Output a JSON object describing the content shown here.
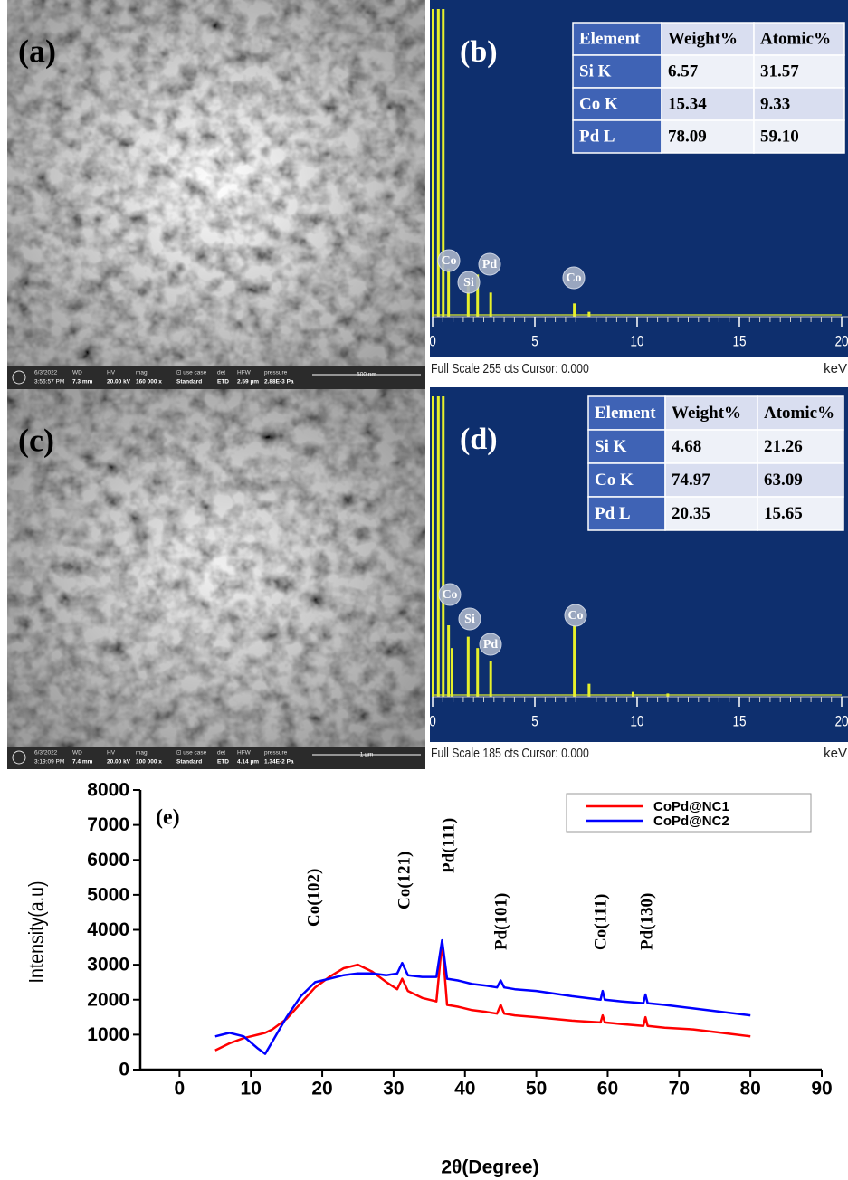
{
  "panels": [
    {
      "label": "(a)",
      "info_labels": [
        "6/3/2022",
        "WD",
        "HV",
        "mag",
        "⊡ use case",
        "det",
        "HFW",
        "pressure"
      ],
      "info_values": [
        "3:56:57 PM",
        "7.3 mm",
        "20.00 kV",
        "160 000 x",
        "Standard",
        "ETD",
        "2.59 µm",
        "2.88E-3 Pa"
      ],
      "scale_bar": "500 nm"
    },
    {
      "label": "(c)",
      "info_labels": [
        "6/3/2022",
        "WD",
        "HV",
        "mag",
        "⊡ use case",
        "det",
        "HFW",
        "pressure"
      ],
      "info_values": [
        "3:19:09 PM",
        "7.4 mm",
        "20.00 kV",
        "100 000 x",
        "Standard",
        "ETD",
        "4.14 µm",
        "1.34E-2 Pa"
      ],
      "scale_bar": "1 µm"
    }
  ],
  "chart_data": [
    {
      "type": "spectrum",
      "title": "(b)",
      "color": "#e6f02a",
      "x": [
        0.28,
        0.52,
        0.78,
        1.74,
        2.2,
        2.84,
        6.93,
        7.65
      ],
      "values": [
        255,
        255,
        40,
        30,
        35,
        20,
        11,
        4
      ],
      "xlim": [
        0,
        20
      ],
      "ylim": [
        0,
        255
      ],
      "xticks": [
        0,
        5,
        10,
        15,
        20
      ],
      "x_unit": "keV",
      "footer": "Full Scale 255 cts Cursor: 0.000",
      "peak_labels": [
        "Co",
        "Si",
        "Pd",
        "Co"
      ],
      "table": {
        "columns": [
          "Element",
          "Weight%",
          "Atomic%"
        ],
        "rows": [
          [
            "Si K",
            "6.57",
            "31.57"
          ],
          [
            "Co K",
            "15.34",
            "9.33"
          ],
          [
            "Pd L",
            "78.09",
            "59.10"
          ]
        ]
      }
    },
    {
      "type": "spectrum",
      "title": "(d)",
      "color": "#e6f02a",
      "x": [
        0.28,
        0.52,
        0.78,
        0.95,
        1.74,
        2.2,
        2.84,
        6.93,
        7.65,
        9.8,
        11.5
      ],
      "values": [
        185,
        185,
        44,
        30,
        37,
        30,
        22,
        44,
        8,
        3,
        2
      ],
      "xlim": [
        0,
        20
      ],
      "ylim": [
        0,
        185
      ],
      "xticks": [
        0,
        5,
        10,
        15,
        20
      ],
      "x_unit": "keV",
      "footer": "Full Scale 185 cts Cursor: 0.000",
      "peak_labels": [
        "Co",
        "Si",
        "Pd",
        "Co"
      ],
      "table": {
        "columns": [
          "Element",
          "Weight%",
          "Atomic%"
        ],
        "rows": [
          [
            "Si K",
            "4.68",
            "21.26"
          ],
          [
            "Co K",
            "74.97",
            "63.09"
          ],
          [
            "Pd L",
            "20.35",
            "15.65"
          ]
        ]
      }
    },
    {
      "type": "line",
      "title": "(e)",
      "xlabel": "2θ(Degree)",
      "ylabel": "Intensity(a.u)",
      "x": [
        5,
        7,
        9,
        11,
        12,
        13,
        15,
        17,
        19,
        21,
        23,
        25,
        27,
        29,
        30.5,
        31.2,
        32,
        34,
        36,
        36.8,
        37.5,
        39,
        41,
        43,
        44.5,
        45,
        45.5,
        47,
        50,
        55,
        59,
        59.3,
        59.6,
        62,
        65,
        65.3,
        65.6,
        68,
        72,
        76,
        80
      ],
      "series": [
        {
          "name": "CoPd@NC1",
          "color": "#ff0000",
          "values": [
            550,
            750,
            900,
            1000,
            1050,
            1150,
            1450,
            1900,
            2350,
            2650,
            2900,
            3000,
            2800,
            2500,
            2300,
            2600,
            2250,
            2050,
            1950,
            3650,
            1850,
            1800,
            1700,
            1650,
            1600,
            1850,
            1600,
            1550,
            1500,
            1400,
            1350,
            1550,
            1350,
            1300,
            1250,
            1500,
            1250,
            1200,
            1150,
            1050,
            950
          ]
        },
        {
          "name": "CoPd@NC2",
          "color": "#0000ff",
          "values": [
            950,
            1050,
            950,
            600,
            450,
            800,
            1500,
            2100,
            2500,
            2600,
            2700,
            2750,
            2750,
            2700,
            2750,
            3050,
            2700,
            2650,
            2650,
            3700,
            2600,
            2550,
            2450,
            2400,
            2350,
            2550,
            2350,
            2300,
            2250,
            2100,
            2000,
            2250,
            2000,
            1950,
            1900,
            2150,
            1900,
            1850,
            1750,
            1650,
            1550
          ]
        }
      ],
      "xlim": [
        -5.5,
        90
      ],
      "ylim": [
        0,
        8000
      ],
      "xticks": [
        0,
        10,
        20,
        30,
        40,
        50,
        60,
        70,
        80,
        90
      ],
      "yticks": [
        0,
        1000,
        2000,
        3000,
        4000,
        5000,
        6000,
        7000,
        8000
      ],
      "legend": "upper right",
      "peak_labels": [
        "Co(102)",
        "Co(121)",
        "Pd(111)",
        "Pd(101)",
        "Co(111)",
        "Pd(130)"
      ]
    }
  ]
}
